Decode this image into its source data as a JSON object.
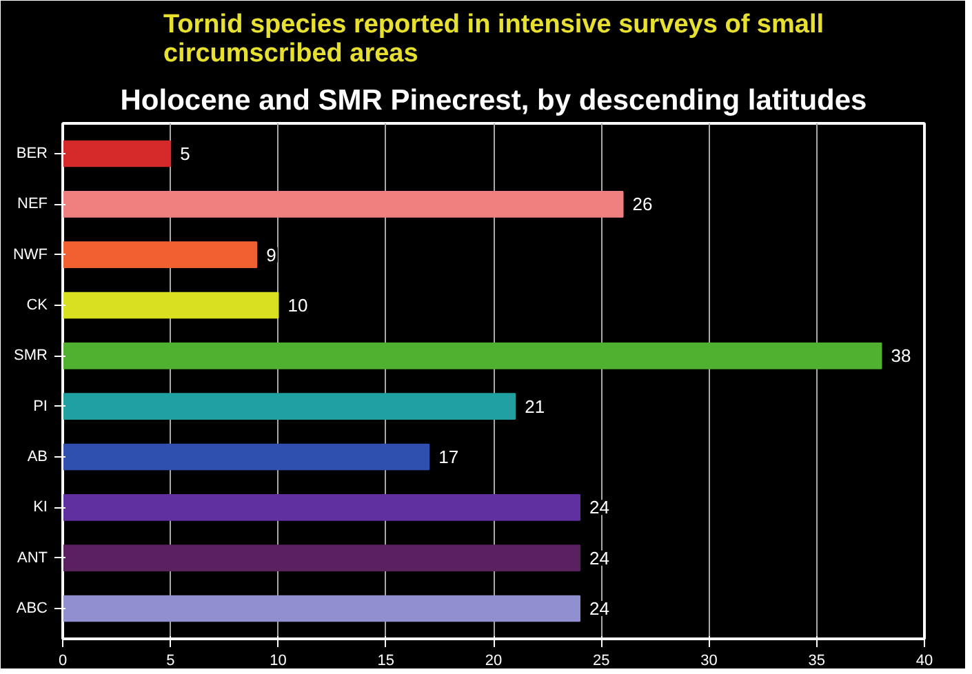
{
  "chart_data": {
    "type": "bar",
    "orientation": "horizontal",
    "title": "Tornid species reported in intensive surveys of small circumscribed areas",
    "subtitle": "Holocene and SMR Pinecrest, by descending latitudes",
    "categories": [
      "BER",
      "NEF",
      "NWF",
      "CK",
      "SMR",
      "PI",
      "AB",
      "KI",
      "ANT",
      "ABC"
    ],
    "values": [
      5,
      26,
      9,
      10,
      38,
      21,
      17,
      24,
      24,
      24
    ],
    "colors": [
      "#d42a2a",
      "#f08080",
      "#f06030",
      "#d8e020",
      "#50b030",
      "#20a0a0",
      "#3050b0",
      "#6030a0",
      "#5a2060",
      "#9090d0"
    ],
    "xlim": [
      0,
      40
    ],
    "xticks": [
      0,
      5,
      10,
      15,
      20,
      25,
      30,
      35,
      40
    ],
    "grid": "x",
    "data_labels": true
  }
}
